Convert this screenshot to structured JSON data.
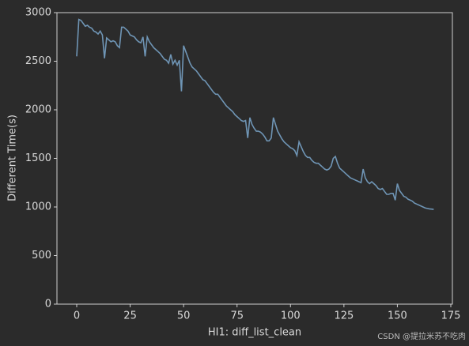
{
  "chart_data": {
    "type": "line",
    "xlabel": "HI1: diff_list_clean",
    "ylabel": "Different Time(s)",
    "watermark": "CSDN @提拉米苏不吃肉",
    "color": "#6f95b5",
    "x": [
      0,
      1,
      2,
      3,
      4,
      5,
      6,
      7,
      8,
      9,
      10,
      11,
      12,
      13,
      14,
      15,
      16,
      17,
      18,
      19,
      20,
      21,
      22,
      23,
      24,
      25,
      26,
      27,
      28,
      29,
      30,
      31,
      32,
      33,
      34,
      35,
      36,
      37,
      38,
      39,
      40,
      41,
      42,
      43,
      44,
      45,
      46,
      47,
      48,
      49,
      50,
      51,
      52,
      53,
      54,
      55,
      56,
      57,
      58,
      59,
      60,
      61,
      62,
      63,
      64,
      65,
      66,
      67,
      68,
      69,
      70,
      71,
      72,
      73,
      74,
      75,
      76,
      77,
      78,
      79,
      80,
      81,
      82,
      83,
      84,
      85,
      86,
      87,
      88,
      89,
      90,
      91,
      92,
      93,
      94,
      95,
      96,
      97,
      98,
      99,
      100,
      101,
      102,
      103,
      104,
      105,
      106,
      107,
      108,
      109,
      110,
      111,
      112,
      113,
      114,
      115,
      116,
      117,
      118,
      119,
      120,
      121,
      122,
      123,
      124,
      125,
      126,
      127,
      128,
      129,
      130,
      131,
      132,
      133,
      134,
      135,
      136,
      137,
      138,
      139,
      140,
      141,
      142,
      143,
      144,
      145,
      146,
      147,
      148,
      149,
      150,
      151,
      152,
      153,
      154,
      155,
      156,
      157,
      158,
      159,
      160,
      161,
      162,
      163,
      164,
      165,
      166,
      167
    ],
    "values": [
      2550,
      2930,
      2920,
      2890,
      2860,
      2870,
      2850,
      2840,
      2810,
      2800,
      2780,
      2810,
      2770,
      2530,
      2740,
      2720,
      2700,
      2710,
      2700,
      2660,
      2640,
      2850,
      2850,
      2830,
      2810,
      2770,
      2760,
      2750,
      2720,
      2700,
      2690,
      2750,
      2550,
      2750,
      2700,
      2670,
      2640,
      2620,
      2600,
      2580,
      2550,
      2520,
      2510,
      2480,
      2570,
      2470,
      2510,
      2460,
      2510,
      2190,
      2660,
      2600,
      2540,
      2480,
      2440,
      2420,
      2400,
      2370,
      2340,
      2310,
      2300,
      2270,
      2240,
      2210,
      2180,
      2160,
      2160,
      2130,
      2100,
      2070,
      2040,
      2020,
      2000,
      1980,
      1950,
      1930,
      1910,
      1890,
      1880,
      1890,
      1710,
      1920,
      1850,
      1810,
      1780,
      1780,
      1770,
      1750,
      1720,
      1680,
      1680,
      1710,
      1920,
      1850,
      1780,
      1740,
      1700,
      1670,
      1650,
      1630,
      1610,
      1600,
      1580,
      1530,
      1670,
      1620,
      1570,
      1530,
      1510,
      1510,
      1480,
      1460,
      1450,
      1450,
      1430,
      1410,
      1390,
      1380,
      1390,
      1420,
      1500,
      1520,
      1450,
      1400,
      1380,
      1360,
      1340,
      1320,
      1300,
      1290,
      1280,
      1270,
      1260,
      1250,
      1390,
      1300,
      1260,
      1240,
      1260,
      1240,
      1220,
      1190,
      1180,
      1190,
      1160,
      1130,
      1130,
      1140,
      1140,
      1070,
      1240,
      1170,
      1140,
      1110,
      1100,
      1080,
      1070,
      1060,
      1040,
      1030,
      1020,
      1010,
      1000,
      990,
      985,
      980,
      978,
      975
    ],
    "xlim": [
      -9.25,
      175.74
    ],
    "ylim": [
      0,
      3000
    ],
    "xticks": [
      0,
      25,
      50,
      75,
      100,
      125,
      150,
      175
    ],
    "yticks": [
      0,
      500,
      1000,
      1500,
      2000,
      2500,
      3000
    ]
  }
}
